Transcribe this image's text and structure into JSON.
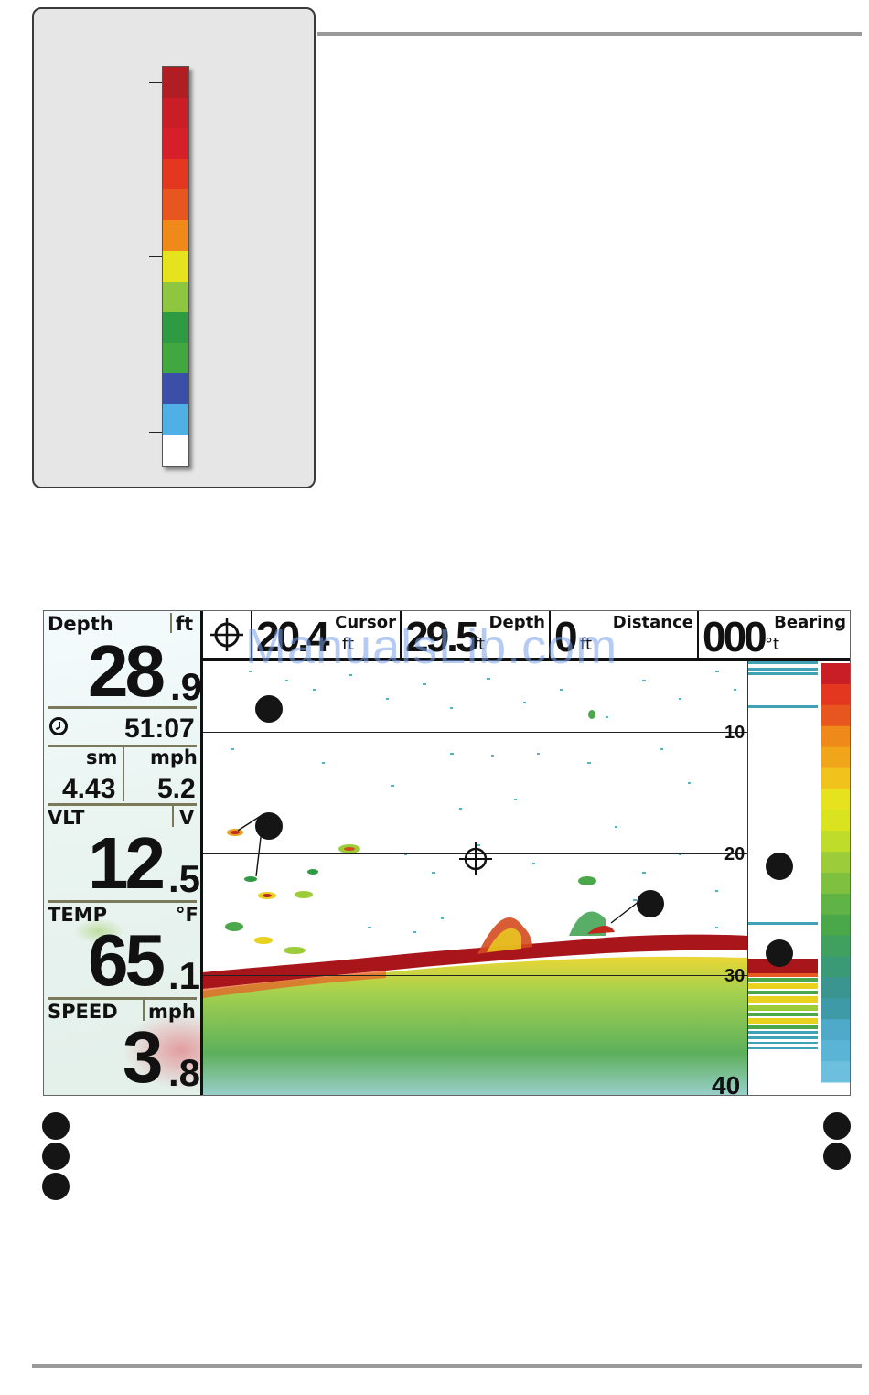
{
  "legend": {
    "colors": [
      "#b01e24",
      "#c91e26",
      "#d71f2a",
      "#e4371f",
      "#e8561f",
      "#ef8a1a",
      "#e7e21e",
      "#8fc63f",
      "#2e9a41",
      "#40a83f",
      "#3b4fa8",
      "#4fb0e5",
      "#ffffff"
    ]
  },
  "left_panel": {
    "depth": {
      "label": "Depth",
      "unit": "ft",
      "whole": "28",
      "decimal": ".9"
    },
    "clock_icon": "clock-icon",
    "timer": "51:07",
    "distance": {
      "unit": "sm",
      "value": "4.43"
    },
    "speed_small": {
      "unit": "mph",
      "value": "5.2"
    },
    "voltage": {
      "label": "VLT",
      "unit": "V",
      "whole": "12",
      "decimal": ".5"
    },
    "temp": {
      "label": "TEMP",
      "unit": "°F",
      "whole": "65",
      "decimal": ".1"
    },
    "speed": {
      "label": "SPEED",
      "unit": "mph",
      "whole": "3",
      "decimal": ".8"
    }
  },
  "top_bar": {
    "cursor_icon": "crosshair-icon",
    "cursor": {
      "title": "Cursor",
      "value": "20.4",
      "unit": "ft"
    },
    "depth": {
      "title": "Depth",
      "value": "29.5",
      "unit": "ft"
    },
    "distance": {
      "title": "Distance",
      "value": "0",
      "unit": "ft"
    },
    "bearing": {
      "title": "Bearing",
      "value": "000",
      "unit": "°t"
    }
  },
  "watermark": "ManualsLib.com",
  "depth_scale": [
    "10",
    "20",
    "30",
    "40"
  ],
  "colors": {
    "bottom_red": "#a8161c",
    "frame": "#111111"
  }
}
